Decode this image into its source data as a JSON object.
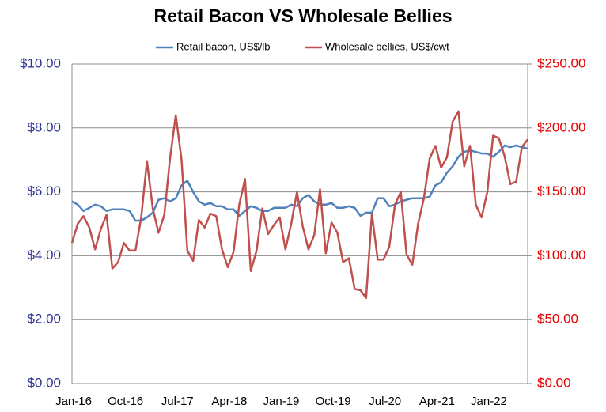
{
  "chart_data": {
    "type": "line",
    "title": "Retail Bacon VS Wholesale Bellies",
    "categories": [
      "Jan-16",
      null,
      null,
      null,
      null,
      null,
      null,
      null,
      null,
      "Oct-16",
      null,
      null,
      null,
      null,
      null,
      null,
      null,
      null,
      "Jul-17",
      null,
      null,
      null,
      null,
      null,
      null,
      null,
      null,
      "Apr-18",
      null,
      null,
      null,
      null,
      null,
      null,
      null,
      null,
      "Jan-19",
      null,
      null,
      null,
      null,
      null,
      null,
      null,
      null,
      "Oct-19",
      null,
      null,
      null,
      null,
      null,
      null,
      null,
      null,
      "Jul-20",
      null,
      null,
      null,
      null,
      null,
      null,
      null,
      null,
      "Apr-21",
      null,
      null,
      null,
      null,
      null,
      null,
      null,
      null,
      "Jan-22",
      null,
      null,
      null,
      null,
      null,
      null,
      null
    ],
    "series": [
      {
        "name": "Retail bacon, US$/lb",
        "color": "#4f81bd",
        "axis": "y",
        "values": [
          5.7,
          5.6,
          5.4,
          5.5,
          5.6,
          5.55,
          5.4,
          5.45,
          5.45,
          5.45,
          5.4,
          5.1,
          5.1,
          5.2,
          5.35,
          5.75,
          5.8,
          5.7,
          5.8,
          6.2,
          6.35,
          6.0,
          5.7,
          5.6,
          5.65,
          5.55,
          5.55,
          5.45,
          5.45,
          5.25,
          5.4,
          5.55,
          5.5,
          5.4,
          5.4,
          5.5,
          5.5,
          5.5,
          5.6,
          5.55,
          5.8,
          5.9,
          5.7,
          5.6,
          5.6,
          5.65,
          5.5,
          5.5,
          5.55,
          5.5,
          5.25,
          5.35,
          5.35,
          5.8,
          5.8,
          5.55,
          5.6,
          5.7,
          5.75,
          5.8,
          5.8,
          5.8,
          5.85,
          6.2,
          6.3,
          6.6,
          6.8,
          7.1,
          7.25,
          7.3,
          7.25,
          7.2,
          7.2,
          7.1,
          7.25,
          7.45,
          7.4,
          7.45,
          7.4,
          7.35
        ]
      },
      {
        "name": "Wholesale bellies, US$/cwt",
        "color": "#c0504d",
        "axis": "y2",
        "values": [
          110,
          125,
          131,
          122,
          105,
          121,
          132,
          90,
          95,
          110,
          104,
          104,
          130,
          174,
          137,
          118,
          132,
          176,
          210,
          175,
          104,
          96,
          128,
          122,
          133,
          131,
          105,
          91,
          103,
          140,
          160,
          88,
          104,
          137,
          117,
          124,
          130,
          105,
          125,
          150,
          123,
          105,
          116,
          152,
          102,
          126,
          118,
          95,
          98,
          74,
          73,
          67,
          133,
          97,
          97,
          107,
          140,
          150,
          101,
          93,
          125,
          145,
          176,
          186,
          169,
          177,
          205,
          213,
          170,
          186,
          140,
          130,
          150,
          194,
          192,
          178,
          156,
          158,
          185,
          191
        ]
      }
    ],
    "ylim": [
      0,
      10
    ],
    "yticks": [
      {
        "value": 0,
        "label": "$0.00"
      },
      {
        "value": 2,
        "label": "$2.00"
      },
      {
        "value": 4,
        "label": "$4.00"
      },
      {
        "value": 6,
        "label": "$6.00"
      },
      {
        "value": 8,
        "label": "$8.00"
      },
      {
        "value": 10,
        "label": "$10.00"
      }
    ],
    "y2lim": [
      0,
      250
    ],
    "y2ticks": [
      {
        "value": 0,
        "label": "$0.00"
      },
      {
        "value": 50,
        "label": "$50.00"
      },
      {
        "value": 100,
        "label": "$100.00"
      },
      {
        "value": 150,
        "label": "$150.00"
      },
      {
        "value": 200,
        "label": "$200.00"
      },
      {
        "value": 250,
        "label": "$250.00"
      }
    ],
    "grid": true,
    "legend": "top"
  }
}
